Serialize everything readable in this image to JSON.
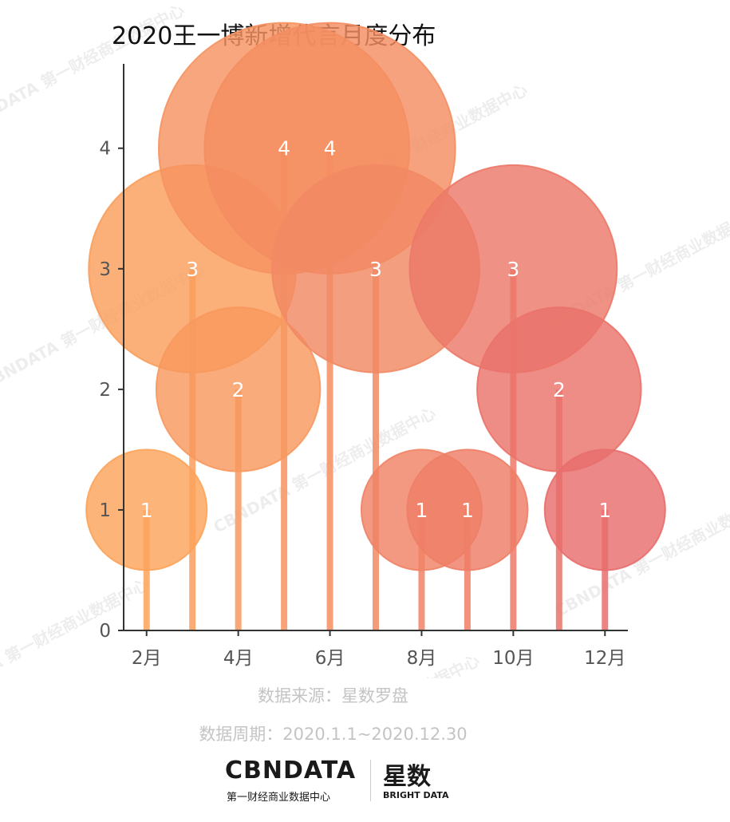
{
  "chart_data": {
    "type": "lollipop-bubble",
    "title": "2020王一博新增代言月度分布",
    "months": [
      2,
      3,
      4,
      5,
      6,
      7,
      8,
      9,
      10,
      11,
      12
    ],
    "values": [
      1,
      3,
      2,
      4,
      4,
      3,
      1,
      1,
      3,
      2,
      1
    ],
    "x_ticks": [
      2,
      4,
      6,
      8,
      10,
      12
    ],
    "x_tick_labels": [
      "2月",
      "4月",
      "6月",
      "8月",
      "10月",
      "12月"
    ],
    "y_ticks": [
      0,
      1,
      2,
      3,
      4
    ],
    "xlim": [
      1.5,
      12.5
    ],
    "ylim": [
      0,
      4.7
    ],
    "grid": false,
    "colors": {
      "start": "#fca35a",
      "end": "#e86e6d",
      "axis": "#333333",
      "tick_label": "#555555"
    }
  },
  "footer": {
    "source": "数据来源：星数罗盘",
    "period": "数据周期：2020.1.1~2020.12.30"
  },
  "logo": {
    "brand": "CBNDATA",
    "brand_sub": "第一财经商业数据中心",
    "partner": "星数",
    "partner_sub": "BRIGHT DATA"
  },
  "watermark": "CBNDATA 第一财经商业数据中心"
}
